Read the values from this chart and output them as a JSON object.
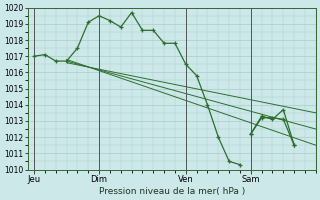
{
  "bg_color": "#cce8e8",
  "grid_color": "#aacccc",
  "line_color": "#2d6e2d",
  "vline_color": "#555555",
  "ylim": [
    1010,
    1020
  ],
  "yticks": [
    1010,
    1011,
    1012,
    1013,
    1014,
    1015,
    1016,
    1017,
    1018,
    1019,
    1020
  ],
  "xlabel": "Pression niveau de la mer( hPa )",
  "xtick_labels": [
    "Jeu",
    "Dim",
    "Ven",
    "Sam"
  ],
  "xtick_pos": [
    0.0,
    3.0,
    7.0,
    10.0
  ],
  "vlines_x": [
    0.0,
    3.0,
    7.0,
    10.0
  ],
  "xlim": [
    -0.3,
    13.0
  ],
  "figsize": [
    3.2,
    2.0
  ],
  "dpi": 100,
  "series_main": {
    "x": [
      0.0,
      0.5,
      1.0,
      1.5,
      2.0,
      2.5,
      3.0,
      3.5,
      4.0,
      4.5,
      5.0,
      5.5,
      6.0,
      6.5,
      7.0,
      7.5,
      8.0,
      8.5,
      9.0,
      9.5
    ],
    "y": [
      1017.0,
      1017.1,
      1016.7,
      1016.7,
      1017.5,
      1019.1,
      1019.5,
      1019.2,
      1018.8,
      1019.7,
      1018.6,
      1018.6,
      1017.8,
      1017.8,
      1016.5,
      1015.8,
      1014.0,
      1012.0,
      1010.5,
      1010.3
    ]
  },
  "series_forecast": [
    {
      "x": [
        1.5,
        13.0
      ],
      "y": [
        1016.8,
        1011.5
      ]
    },
    {
      "x": [
        1.5,
        13.0
      ],
      "y": [
        1016.7,
        1012.5
      ]
    },
    {
      "x": [
        1.5,
        13.0
      ],
      "y": [
        1016.6,
        1013.5
      ]
    }
  ],
  "series_sam1": {
    "x": [
      10.0,
      10.5,
      11.0,
      11.5,
      12.0
    ],
    "y": [
      1012.2,
      1013.2,
      1013.2,
      1013.1,
      1011.5
    ]
  },
  "series_sam2": {
    "x": [
      10.0,
      10.5,
      11.0,
      11.5,
      12.0
    ],
    "y": [
      1012.2,
      1013.3,
      1013.1,
      1013.7,
      1011.5
    ]
  }
}
